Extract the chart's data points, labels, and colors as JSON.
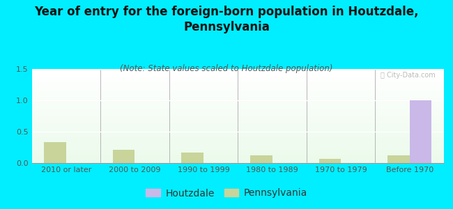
{
  "title": "Year of entry for the foreign-born population in Houtzdale,\nPennsylvania",
  "subtitle": "(Note: State values scaled to Houtzdale population)",
  "categories": [
    "2010 or later",
    "2000 to 2009",
    "1990 to 1999",
    "1980 to 1989",
    "1970 to 1979",
    "Before 1970"
  ],
  "houtzdale_values": [
    0,
    0,
    0,
    0,
    0,
    1.0
  ],
  "pennsylvania_values": [
    0.33,
    0.21,
    0.17,
    0.12,
    0.07,
    0.12
  ],
  "houtzdale_color": "#c9b8e8",
  "pennsylvania_color": "#c8d49a",
  "background_color": "#00eeff",
  "ylim": [
    0,
    1.5
  ],
  "yticks": [
    0,
    0.5,
    1,
    1.5
  ],
  "bar_width": 0.32,
  "title_fontsize": 12,
  "subtitle_fontsize": 8.5,
  "tick_fontsize": 8,
  "legend_fontsize": 10
}
